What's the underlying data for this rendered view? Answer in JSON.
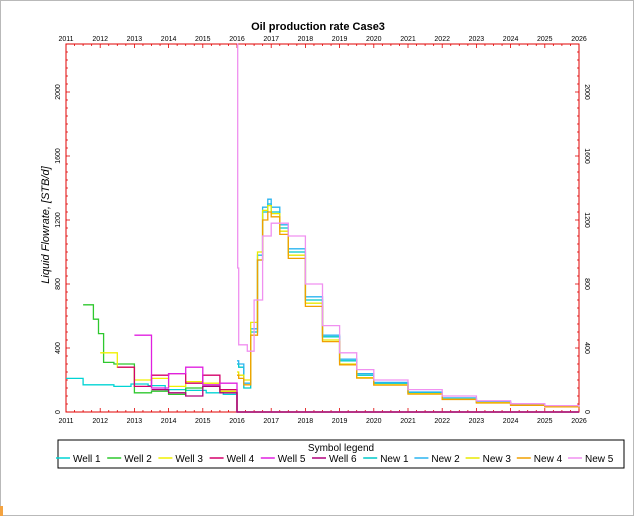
{
  "chart_data": {
    "type": "line",
    "title": "Oil production rate Case3",
    "ylabel": "Liquid Flowrate, [STB/d]",
    "xlabel": "",
    "xlim": [
      2011,
      2026
    ],
    "ylim": [
      0,
      2300
    ],
    "x_ticks": [
      "2011",
      "2012",
      "2013",
      "2014",
      "2015",
      "2016",
      "2017",
      "2018",
      "2019",
      "2020",
      "2021",
      "2022",
      "2023",
      "2024",
      "2025",
      "2026"
    ],
    "y_ticks": [
      0,
      400,
      800,
      1200,
      1600,
      2000
    ],
    "grid": false,
    "step": true,
    "legend": {
      "title": "Symbol legend",
      "placement": "bottom"
    },
    "series": [
      {
        "name": "Well 1",
        "color": "#00d4d4",
        "x": [
          2011.0,
          2011.5,
          2012.4,
          2012.9,
          2013.4,
          2013.9,
          2014.5,
          2015.1,
          2015.6,
          2016.0
        ],
        "y": [
          210,
          170,
          160,
          175,
          165,
          140,
          135,
          120,
          110,
          0
        ]
      },
      {
        "name": "Well 2",
        "color": "#2ec82e",
        "x": [
          2011.5,
          2011.8,
          2011.95,
          2012.1,
          2012.4,
          2013.0,
          2013.5,
          2014.0,
          2014.5,
          2015.0,
          2015.5,
          2016.0
        ],
        "y": [
          670,
          580,
          490,
          310,
          300,
          120,
          130,
          110,
          150,
          160,
          130,
          0
        ]
      },
      {
        "name": "Well 3",
        "color": "#f0f000",
        "x": [
          2012.0,
          2012.5,
          2013.0,
          2013.5,
          2014.0,
          2014.5,
          2015.0,
          2015.5,
          2016.0
        ],
        "y": [
          370,
          280,
          200,
          210,
          160,
          190,
          180,
          130,
          0
        ]
      },
      {
        "name": "Well 4",
        "color": "#d4006a",
        "x": [
          2012.5,
          2013.0,
          2013.5,
          2014.0,
          2014.5,
          2015.0,
          2015.5,
          2016.0
        ],
        "y": [
          280,
          160,
          230,
          240,
          180,
          230,
          140,
          0
        ]
      },
      {
        "name": "Well 5",
        "color": "#e020e0",
        "x": [
          2013.0,
          2013.5,
          2014.0,
          2014.5,
          2015.0,
          2015.5,
          2016.0
        ],
        "y": [
          480,
          150,
          240,
          280,
          170,
          180,
          0
        ]
      },
      {
        "name": "Well 6",
        "color": "#b0007a",
        "x": [
          2013.5,
          2014.0,
          2014.5,
          2015.0,
          2015.5,
          2016.0
        ],
        "y": [
          140,
          120,
          100,
          160,
          120,
          0
        ]
      },
      {
        "name": "New 1",
        "color": "#00c8c8",
        "x": [
          2016.0,
          2016.05,
          2016.2,
          2016.4,
          2016.6,
          2016.75,
          2016.9,
          2017.0,
          2017.25,
          2017.5,
          2018.0,
          2018.5,
          2019.0,
          2019.5,
          2020.0,
          2021.0,
          2022.0,
          2023.0,
          2024.0,
          2025.0,
          2026.0
        ],
        "y": [
          300,
          280,
          150,
          500,
          950,
          1250,
          1300,
          1250,
          1150,
          1000,
          700,
          470,
          320,
          230,
          180,
          120,
          85,
          60,
          45,
          35,
          25
        ]
      },
      {
        "name": "New 2",
        "color": "#2ab4f0",
        "x": [
          2016.0,
          2016.05,
          2016.2,
          2016.4,
          2016.6,
          2016.75,
          2016.9,
          2017.0,
          2017.25,
          2017.5,
          2018.0,
          2018.5,
          2019.0,
          2019.5,
          2020.0,
          2021.0,
          2022.0,
          2023.0,
          2024.0,
          2025.0,
          2026.0
        ],
        "y": [
          320,
          300,
          180,
          520,
          980,
          1280,
          1330,
          1280,
          1170,
          1020,
          720,
          480,
          330,
          240,
          185,
          125,
          88,
          62,
          47,
          36,
          26
        ]
      },
      {
        "name": "New 3",
        "color": "#e8e800",
        "x": [
          2016.0,
          2016.05,
          2016.2,
          2016.4,
          2016.6,
          2016.75,
          2016.9,
          2017.0,
          2017.25,
          2017.5,
          2018.0,
          2018.5,
          2019.0,
          2019.5,
          2020.0,
          2021.0,
          2022.0,
          2023.0,
          2024.0,
          2025.0,
          2026.0
        ],
        "y": [
          250,
          230,
          200,
          560,
          1000,
          1260,
          1290,
          1240,
          1130,
          980,
          680,
          450,
          300,
          215,
          170,
          115,
          80,
          58,
          43,
          33,
          24
        ]
      },
      {
        "name": "New 4",
        "color": "#f0a000",
        "x": [
          2016.0,
          2016.05,
          2016.2,
          2016.4,
          2016.6,
          2016.75,
          2016.9,
          2017.0,
          2017.25,
          2017.5,
          2018.0,
          2018.5,
          2019.0,
          2019.5,
          2020.0,
          2021.0,
          2022.0,
          2023.0,
          2024.0,
          2025.0,
          2026.0
        ],
        "y": [
          230,
          210,
          170,
          480,
          950,
          1200,
          1250,
          1220,
          1110,
          960,
          660,
          440,
          295,
          212,
          168,
          112,
          78,
          56,
          42,
          32,
          23
        ]
      },
      {
        "name": "New 5",
        "color": "#f090f0",
        "x": [
          2016.0,
          2016.02,
          2016.05,
          2016.3,
          2016.5,
          2016.75,
          2017.0,
          2017.5,
          2018.0,
          2018.5,
          2019.0,
          2019.5,
          2020.0,
          2021.0,
          2022.0,
          2023.0,
          2024.0,
          2025.0,
          2026.0
        ],
        "y": [
          2300,
          900,
          420,
          380,
          700,
          1100,
          1180,
          1100,
          800,
          540,
          370,
          265,
          200,
          140,
          100,
          70,
          52,
          40,
          30
        ]
      }
    ]
  }
}
